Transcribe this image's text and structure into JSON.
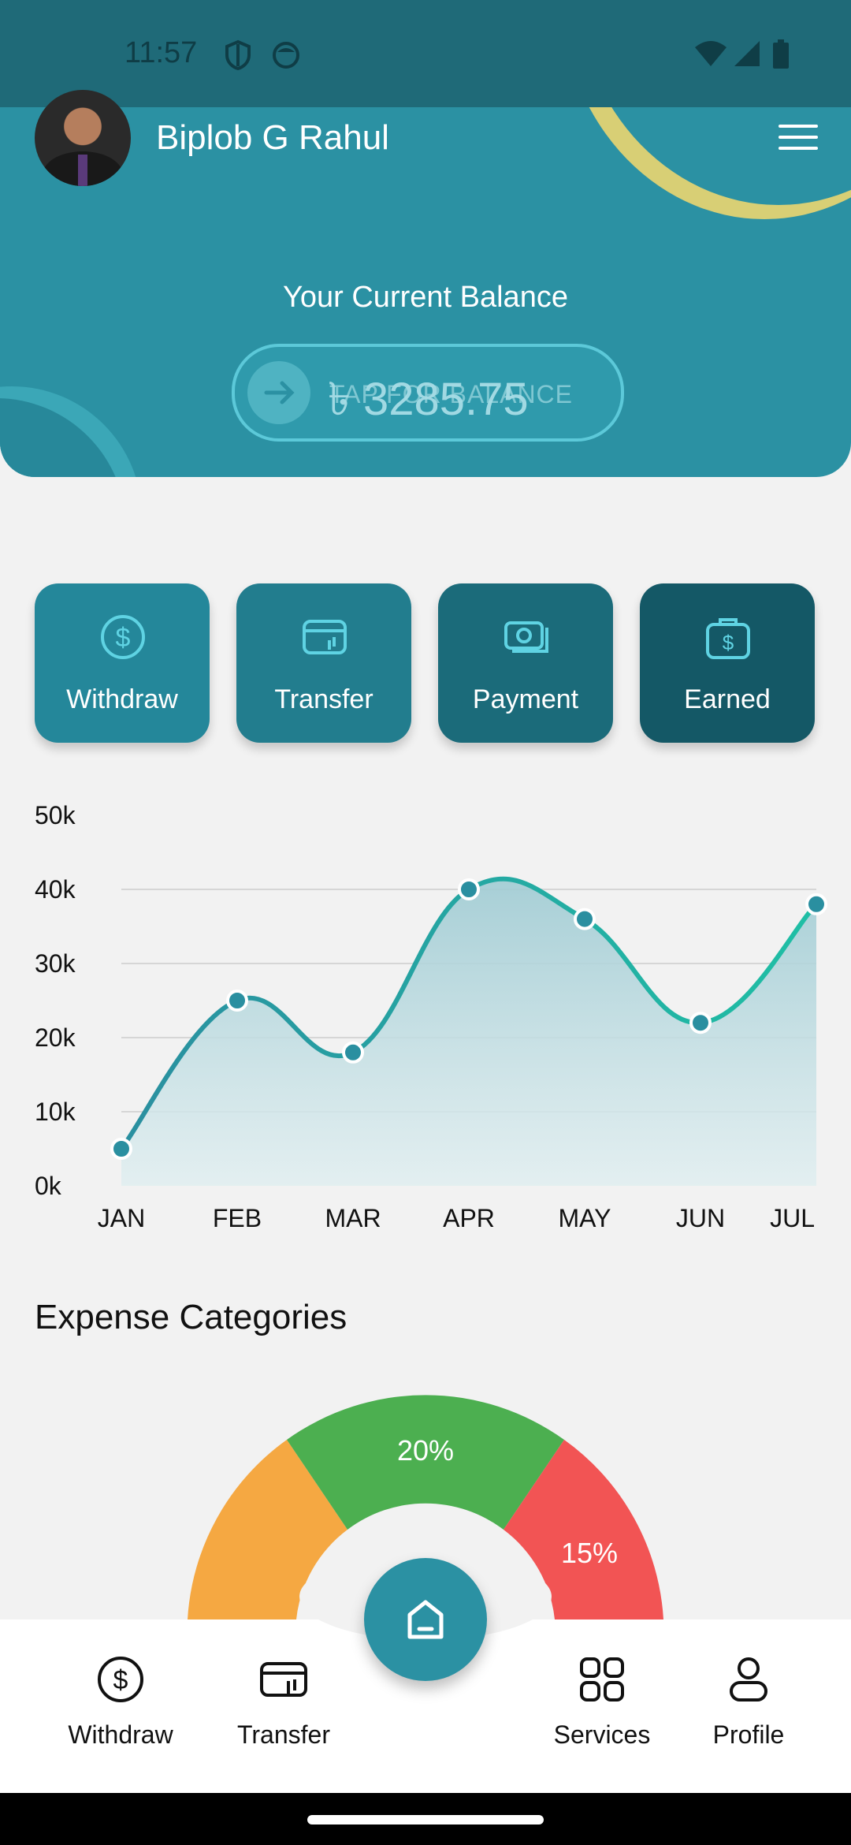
{
  "status_bar": {
    "time": "11:57"
  },
  "header": {
    "user_name": "Biplob G Rahul",
    "balance_label": "Your Current Balance",
    "balance_amount": "৳ 3285.75",
    "balance_hint": "TAP FOR BALANCE"
  },
  "actions": [
    {
      "label": "Withdraw",
      "icon": "dollar-circle-icon",
      "color": "#24879a"
    },
    {
      "label": "Transfer",
      "icon": "card-transfer-icon",
      "color": "#227d8e"
    },
    {
      "label": "Payment",
      "icon": "cash-icon",
      "color": "#1b6b7a"
    },
    {
      "label": "Earned",
      "icon": "wallet-dollar-icon",
      "color": "#145866"
    }
  ],
  "chart_data": {
    "type": "area",
    "categories": [
      "JAN",
      "FEB",
      "MAR",
      "APR",
      "MAY",
      "JUN",
      "JUL"
    ],
    "values": [
      5000,
      25000,
      18000,
      40000,
      36000,
      22000,
      38000
    ],
    "ylim": [
      0,
      50000
    ],
    "yticks": [
      "0k",
      "10k",
      "20k",
      "30k",
      "40k",
      "50k"
    ],
    "grid": true,
    "line_color": "#1fa5a0",
    "fill_color": "#b9dbe0"
  },
  "expense": {
    "title": "Expense Categories",
    "segments": [
      {
        "label": "",
        "value": null,
        "color": "#f5a842"
      },
      {
        "label": "20%",
        "value": 20,
        "color": "#4caf50"
      },
      {
        "label": "15%",
        "value": 15,
        "color": "#f25454"
      }
    ]
  },
  "bottom_nav": {
    "items": [
      {
        "label": "Withdraw",
        "icon": "dollar-circle-icon"
      },
      {
        "label": "Transfer",
        "icon": "card-transfer-icon"
      },
      {
        "label": "Services",
        "icon": "grid-icon"
      },
      {
        "label": "Profile",
        "icon": "person-icon"
      }
    ],
    "center": {
      "icon": "home-icon"
    }
  }
}
